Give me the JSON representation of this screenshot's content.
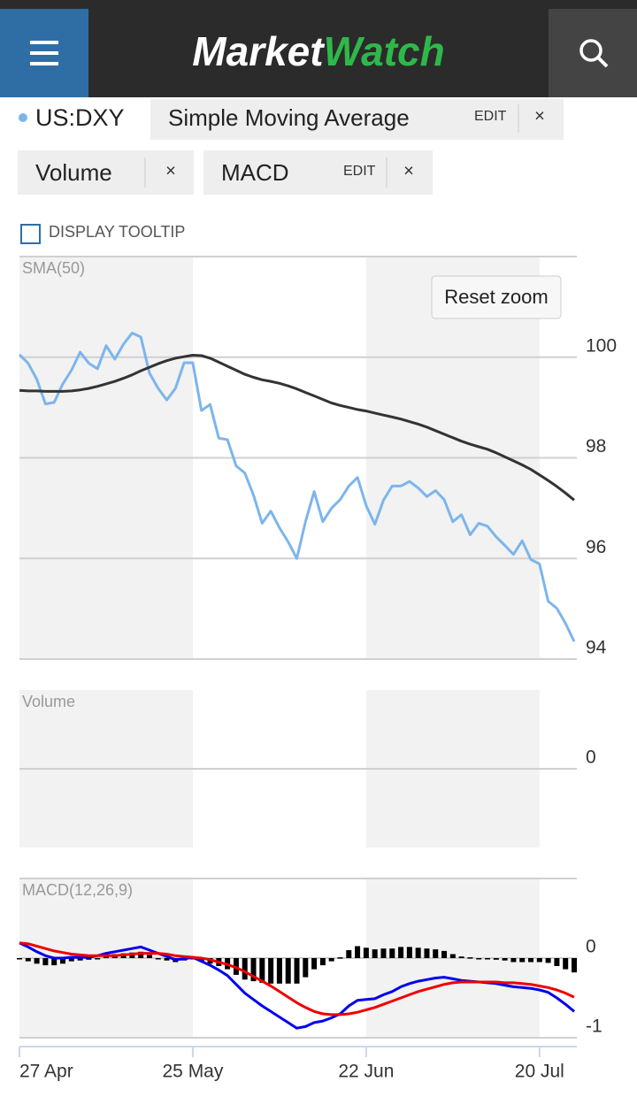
{
  "header": {
    "logo_left": "Market",
    "logo_right": "Watch"
  },
  "symbol": "US:DXY",
  "indicators": [
    {
      "name": "Simple Moving Average",
      "edit": "EDIT",
      "close": "×"
    },
    {
      "name": "Volume",
      "close": "×"
    },
    {
      "name": "MACD",
      "edit": "EDIT",
      "close": "×"
    }
  ],
  "tooltip_toggle": "DISPLAY TOOLTIP",
  "reset_zoom": "Reset zoom",
  "chart_data": [
    {
      "type": "line",
      "title": "SMA(50)",
      "ylim": [
        94,
        102
      ],
      "yticks": [
        94,
        96,
        98,
        100
      ],
      "grid": true,
      "series": [
        {
          "color": "#7cb5ec",
          "values": [
            100.05,
            99.88,
            99.56,
            99.07,
            99.1,
            99.47,
            99.74,
            100.1,
            99.88,
            99.77,
            100.23,
            99.96,
            100.26,
            100.48,
            100.4,
            99.68,
            99.38,
            99.15,
            99.38,
            99.89,
            99.89,
            98.94,
            99.06,
            98.39,
            98.36,
            97.84,
            97.7,
            97.26,
            96.7,
            96.94,
            96.61,
            96.33,
            96.0,
            96.73,
            97.33,
            96.73,
            97.0,
            97.17,
            97.44,
            97.61,
            97.05,
            96.68,
            97.16,
            97.44,
            97.44,
            97.53,
            97.4,
            97.23,
            97.35,
            97.17,
            96.73,
            96.87,
            96.47,
            96.7,
            96.64,
            96.43,
            96.26,
            96.08,
            96.35,
            95.98,
            95.89,
            95.15,
            95.01,
            94.71,
            94.35
          ]
        },
        {
          "color": "#333333",
          "values": [
            99.34,
            99.33,
            99.33,
            99.32,
            99.32,
            99.32,
            99.33,
            99.35,
            99.38,
            99.42,
            99.47,
            99.52,
            99.58,
            99.65,
            99.73,
            99.8,
            99.87,
            99.93,
            99.98,
            100.01,
            100.04,
            100.03,
            99.98,
            99.9,
            99.82,
            99.74,
            99.66,
            99.6,
            99.55,
            99.52,
            99.48,
            99.43,
            99.37,
            99.3,
            99.23,
            99.16,
            99.09,
            99.04,
            99.0,
            98.96,
            98.93,
            98.89,
            98.85,
            98.81,
            98.77,
            98.72,
            98.67,
            98.61,
            98.54,
            98.47,
            98.4,
            98.33,
            98.27,
            98.22,
            98.17,
            98.1,
            98.02,
            97.94,
            97.86,
            97.77,
            97.66,
            97.55,
            97.43,
            97.3,
            97.16
          ]
        }
      ]
    },
    {
      "type": "bar",
      "title": "Volume",
      "ylim": [
        -1,
        1
      ],
      "yticks": [
        0
      ],
      "grid": true,
      "series": []
    },
    {
      "type": "line",
      "title": "MACD(12,26,9)",
      "ylim": [
        -1,
        1
      ],
      "yticks": [
        -1,
        0
      ],
      "grid": true,
      "categories": [
        "27 Apr",
        null,
        null,
        null,
        null,
        null,
        null,
        null,
        null,
        null,
        null,
        null,
        null,
        null,
        null,
        null,
        null,
        null,
        null,
        null,
        "25 May",
        null,
        null,
        null,
        null,
        null,
        null,
        null,
        null,
        null,
        null,
        null,
        null,
        null,
        null,
        null,
        null,
        null,
        null,
        null,
        "22 Jun",
        null,
        null,
        null,
        null,
        null,
        null,
        null,
        null,
        null,
        null,
        null,
        null,
        null,
        null,
        null,
        null,
        null,
        null,
        null,
        "20 Jul",
        null,
        null,
        null,
        null
      ],
      "series": [
        {
          "type": "bar",
          "color": "#000000",
          "values": [
            0.0,
            -0.04,
            -0.07,
            -0.09,
            -0.09,
            -0.07,
            -0.04,
            -0.03,
            -0.02,
            0.0,
            0.03,
            0.05,
            0.06,
            0.07,
            0.08,
            0.04,
            0.0,
            -0.03,
            -0.05,
            -0.03,
            0.0,
            -0.04,
            -0.07,
            -0.1,
            -0.14,
            -0.21,
            -0.27,
            -0.29,
            -0.31,
            -0.32,
            -0.32,
            -0.32,
            -0.32,
            -0.24,
            -0.14,
            -0.09,
            -0.04,
            0.01,
            0.1,
            0.15,
            0.13,
            0.11,
            0.12,
            0.12,
            0.14,
            0.14,
            0.13,
            0.12,
            0.11,
            0.09,
            0.05,
            0.02,
            0.01,
            0.0,
            -0.01,
            -0.02,
            -0.03,
            -0.05,
            -0.05,
            -0.05,
            -0.05,
            -0.06,
            -0.1,
            -0.14,
            -0.18
          ]
        },
        {
          "type": "line",
          "color": "#0000ee",
          "values": [
            0.19,
            0.14,
            0.08,
            0.03,
            0.0,
            0.0,
            0.01,
            0.01,
            0.01,
            0.03,
            0.06,
            0.08,
            0.1,
            0.12,
            0.14,
            0.1,
            0.06,
            0.02,
            -0.02,
            -0.01,
            0.01,
            -0.04,
            -0.09,
            -0.15,
            -0.22,
            -0.33,
            -0.44,
            -0.52,
            -0.6,
            -0.67,
            -0.74,
            -0.81,
            -0.88,
            -0.86,
            -0.81,
            -0.79,
            -0.75,
            -0.7,
            -0.6,
            -0.53,
            -0.52,
            -0.51,
            -0.46,
            -0.42,
            -0.36,
            -0.32,
            -0.29,
            -0.27,
            -0.25,
            -0.24,
            -0.26,
            -0.28,
            -0.29,
            -0.3,
            -0.31,
            -0.32,
            -0.34,
            -0.36,
            -0.37,
            -0.38,
            -0.4,
            -0.43,
            -0.5,
            -0.58,
            -0.67
          ]
        },
        {
          "type": "line",
          "color": "#ee0000",
          "values": [
            0.19,
            0.18,
            0.15,
            0.12,
            0.09,
            0.07,
            0.05,
            0.04,
            0.03,
            0.03,
            0.03,
            0.03,
            0.04,
            0.05,
            0.06,
            0.06,
            0.06,
            0.05,
            0.03,
            0.02,
            0.01,
            0.0,
            -0.02,
            -0.05,
            -0.08,
            -0.12,
            -0.17,
            -0.23,
            -0.29,
            -0.35,
            -0.42,
            -0.49,
            -0.56,
            -0.62,
            -0.67,
            -0.7,
            -0.71,
            -0.71,
            -0.7,
            -0.68,
            -0.65,
            -0.62,
            -0.58,
            -0.54,
            -0.5,
            -0.46,
            -0.42,
            -0.39,
            -0.36,
            -0.33,
            -0.31,
            -0.3,
            -0.3,
            -0.3,
            -0.3,
            -0.3,
            -0.31,
            -0.31,
            -0.32,
            -0.33,
            -0.35,
            -0.37,
            -0.4,
            -0.44,
            -0.49
          ]
        }
      ]
    }
  ]
}
